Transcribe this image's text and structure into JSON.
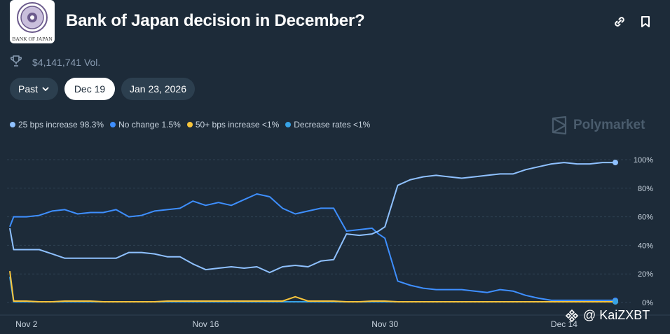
{
  "header": {
    "logo_text": "BANK OF JAPAN",
    "title": "Bank of Japan decision in December?",
    "volume": "$4,141,741 Vol."
  },
  "filters": {
    "past_label": "Past",
    "date1": "Dec 19",
    "date2": "Jan 23, 2026"
  },
  "legend": [
    {
      "label": "25 bps increase 98.3%",
      "color": "#8fc1ff"
    },
    {
      "label": "No change 1.5%",
      "color": "#3e8fff"
    },
    {
      "label": "50+ bps increase <1%",
      "color": "#f8c53c"
    },
    {
      "label": "Decrease rates <1%",
      "color": "#37a3e6"
    }
  ],
  "brand": "Polymarket",
  "watermark": "KaiZXBT",
  "watermark_at": "@",
  "chart_data": {
    "type": "line",
    "title": "",
    "xlabel": "",
    "ylabel": "",
    "ylim": [
      0,
      100
    ],
    "yticks": [
      "0%",
      "20%",
      "40%",
      "60%",
      "80%",
      "100%"
    ],
    "xticks": [
      {
        "label": "Nov 2",
        "day": 2
      },
      {
        "label": "Nov 16",
        "day": 16
      },
      {
        "label": "Nov 30",
        "day": 30
      },
      {
        "label": "Dec 14",
        "day": 44
      }
    ],
    "grid": true,
    "x": [
      0.7,
      1,
      2,
      3,
      4,
      5,
      6,
      7,
      8,
      9,
      10,
      11,
      12,
      13,
      14,
      15,
      16,
      17,
      18,
      19,
      20,
      21,
      22,
      23,
      24,
      25,
      26,
      27,
      28,
      29,
      29.5,
      30,
      31,
      32,
      33,
      34,
      35,
      36,
      37,
      38,
      39,
      40,
      41,
      42,
      43,
      44,
      45,
      46,
      47,
      48
    ],
    "series": [
      {
        "name": "25 bps increase",
        "color": "#8fc1ff",
        "values": [
          52,
          37,
          37,
          37,
          34,
          31,
          31,
          31,
          31,
          31,
          35,
          35,
          34,
          32,
          32,
          27,
          23,
          24,
          25,
          24,
          25,
          21,
          25,
          26,
          25,
          29,
          30,
          48,
          47,
          48,
          50,
          53,
          82,
          86,
          88,
          89,
          88,
          87,
          88,
          89,
          90,
          90,
          93,
          95,
          97,
          98,
          97,
          97,
          98,
          98
        ]
      },
      {
        "name": "No change",
        "color": "#3e8fff",
        "values": [
          53,
          60,
          60,
          61,
          64,
          65,
          62,
          63,
          63,
          65,
          60,
          61,
          64,
          65,
          66,
          71,
          68,
          70,
          68,
          72,
          76,
          74,
          66,
          62,
          64,
          66,
          66,
          50,
          51,
          52,
          48,
          45,
          15,
          12,
          10,
          9,
          9,
          9,
          8,
          7,
          9,
          8,
          5,
          3,
          1.5,
          1.5,
          1.5,
          1.5,
          1.5,
          1.5
        ]
      },
      {
        "name": "50+ bps increase",
        "color": "#f8c53c",
        "values": [
          22,
          1,
          1,
          0.5,
          0.5,
          1,
          1,
          1,
          0.5,
          0.5,
          0.5,
          0.5,
          0.5,
          1,
          1,
          1,
          1,
          1,
          1,
          1,
          1,
          1,
          1,
          4,
          1,
          1,
          1,
          0.5,
          0.5,
          1,
          1,
          1,
          0.5,
          0.5,
          0.5,
          0.5,
          0.5,
          0.5,
          0.5,
          0.5,
          0.5,
          0.5,
          0.5,
          0.5,
          0.5,
          0.5,
          0.5,
          0.5,
          0.5,
          0.5
        ]
      },
      {
        "name": "Decrease rates",
        "color": "#37a3e6",
        "values": [
          18,
          0.5,
          0.5,
          0.5,
          0.5,
          0.5,
          0.5,
          0.5,
          0.5,
          0.5,
          0.5,
          0.5,
          0.5,
          0.5,
          0.5,
          0.5,
          0.5,
          0.5,
          0.5,
          0.5,
          0.5,
          0.5,
          0.5,
          0.5,
          0.5,
          0.5,
          0.5,
          0.5,
          0.5,
          0.5,
          0.5,
          0.5,
          0.5,
          0.5,
          0.5,
          0.5,
          0.5,
          0.5,
          0.5,
          0.5,
          0.5,
          0.5,
          0.5,
          0.5,
          0.5,
          0.5,
          0.5,
          0.5,
          0.5,
          0.5
        ]
      }
    ]
  }
}
